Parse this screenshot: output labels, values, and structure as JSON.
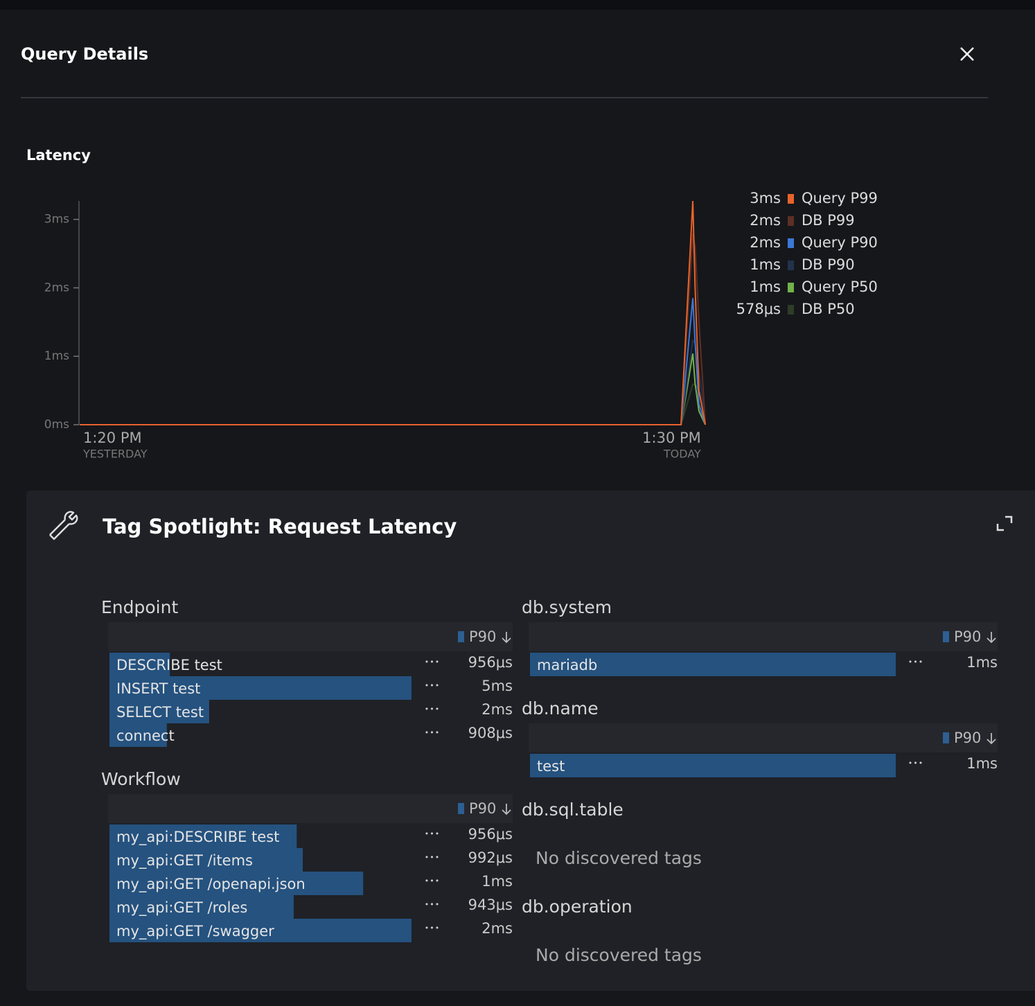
{
  "header": {
    "title": "Query Details"
  },
  "latency": {
    "title": "Latency",
    "chart": {
      "type": "line",
      "x": [
        0,
        23.5,
        23.96,
        24.05,
        24.2,
        24.45
      ],
      "xlim": [
        0,
        24.5
      ],
      "xticks": [
        {
          "value": 0,
          "label": "1:20 PM",
          "sublabel": "YESTERDAY"
        },
        {
          "value": 24.17,
          "label": "1:30 PM",
          "sublabel": "TODAY"
        }
      ],
      "ylim": [
        0,
        3.27
      ],
      "yticks": [
        {
          "value": 0,
          "label": "0ms"
        },
        {
          "value": 1,
          "label": "1ms"
        },
        {
          "value": 2,
          "label": "2ms"
        },
        {
          "value": 3,
          "label": "3ms"
        }
      ],
      "series": [
        {
          "name": "Query P99",
          "legend_value": "3ms",
          "color": "#e8632b",
          "values": [
            0,
            0,
            3.27,
            2.0,
            0.5,
            0
          ]
        },
        {
          "name": "DB P99",
          "legend_value": "2ms",
          "color": "#5e2f24",
          "values": [
            0,
            0,
            2.79,
            2.6,
            1.5,
            0
          ]
        },
        {
          "name": "Query P90",
          "legend_value": "2ms",
          "color": "#3b78d8",
          "values": [
            0,
            0,
            1.85,
            1.2,
            0.3,
            0
          ]
        },
        {
          "name": "DB P90",
          "legend_value": "1ms",
          "color": "#22324d",
          "values": [
            0,
            0,
            1.23,
            1.2,
            0.8,
            0
          ]
        },
        {
          "name": "Query P50",
          "legend_value": "1ms",
          "color": "#73b24a",
          "values": [
            0,
            0,
            1.04,
            0.6,
            0.2,
            0
          ]
        },
        {
          "name": "DB P50",
          "legend_value": "578μs",
          "color": "#2e3d28",
          "values": [
            0,
            0,
            0.59,
            0.59,
            0.5,
            0
          ]
        }
      ]
    }
  },
  "tag_spotlight": {
    "title": "Tag Spotlight: Request Latency",
    "sections": [
      {
        "name": "Endpoint",
        "column": "P90",
        "rows": [
          {
            "label": "DESCRIBE test",
            "value": "956μs",
            "share": 20
          },
          {
            "label": "INSERT test",
            "value": "5ms",
            "share": 100
          },
          {
            "label": "SELECT test",
            "value": "2ms",
            "share": 33
          },
          {
            "label": "connect",
            "value": "908μs",
            "share": 19
          }
        ]
      },
      {
        "name": "Workflow",
        "column": "P90",
        "rows": [
          {
            "label": "my_api:DESCRIBE test",
            "value": "956μs",
            "share": 62
          },
          {
            "label": "my_api:GET /items",
            "value": "992μs",
            "share": 64
          },
          {
            "label": "my_api:GET /openapi.json",
            "value": "1ms",
            "share": 84
          },
          {
            "label": "my_api:GET /roles",
            "value": "943μs",
            "share": 61
          },
          {
            "label": "my_api:GET /swagger",
            "value": "2ms",
            "share": 100
          }
        ]
      },
      {
        "name": "db.system",
        "column": "P90",
        "rows": [
          {
            "label": "mariadb",
            "value": "1ms",
            "share": 100
          }
        ]
      },
      {
        "name": "db.name",
        "column": "P90",
        "rows": [
          {
            "label": "test",
            "value": "1ms",
            "share": 100
          }
        ]
      },
      {
        "name": "db.sql.table",
        "empty": "No discovered tags"
      },
      {
        "name": "db.operation",
        "empty": "No discovered tags"
      }
    ]
  }
}
